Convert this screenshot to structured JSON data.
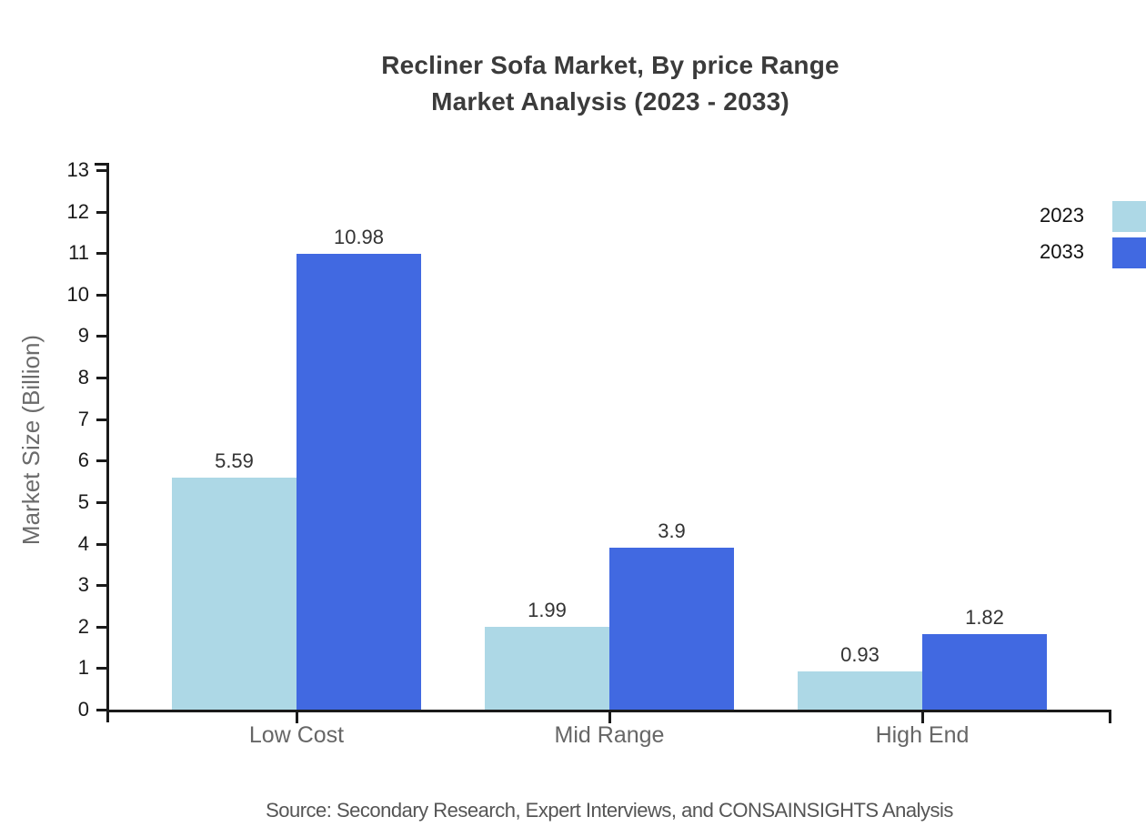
{
  "title": {
    "line1": "Recliner Sofa Market, By price Range",
    "line2": "Market Analysis (2023 - 2033)"
  },
  "legend": {
    "items": [
      {
        "label": "2023",
        "color": "#add8e6"
      },
      {
        "label": "2033",
        "color": "#4169e1"
      }
    ]
  },
  "source_text": "Source: Secondary Research, Expert Interviews, and CONSAINSIGHTS Analysis",
  "chart_data": {
    "type": "bar",
    "title": "Recliner Sofa Market, By price Range Market Analysis (2023 - 2033)",
    "categories": [
      "Low Cost",
      "Mid Range",
      "High End"
    ],
    "series": [
      {
        "name": "2023",
        "color": "#add8e6",
        "values": [
          5.59,
          1.99,
          0.93
        ]
      },
      {
        "name": "2033",
        "color": "#4169e1",
        "values": [
          10.98,
          3.9,
          1.82
        ]
      }
    ],
    "xlabel": "",
    "ylabel": "Market Size (Billion)",
    "ylim": [
      0,
      13
    ],
    "yticks": [
      0,
      1,
      2,
      3,
      4,
      5,
      6,
      7,
      8,
      9,
      10,
      11,
      12,
      13
    ],
    "grid": false,
    "legend_position": "top-right",
    "bar_value_labels": true
  },
  "colors": {
    "background": "#ffffff",
    "title_text": "#3b3b3b",
    "axis_line": "#1a1a1a",
    "tick_label_text": "#1a1a1a",
    "category_label_text": "#666666",
    "value_label_text": "#333333",
    "y_axis_title_text": "#6b6b6b",
    "source_text": "#555555"
  }
}
